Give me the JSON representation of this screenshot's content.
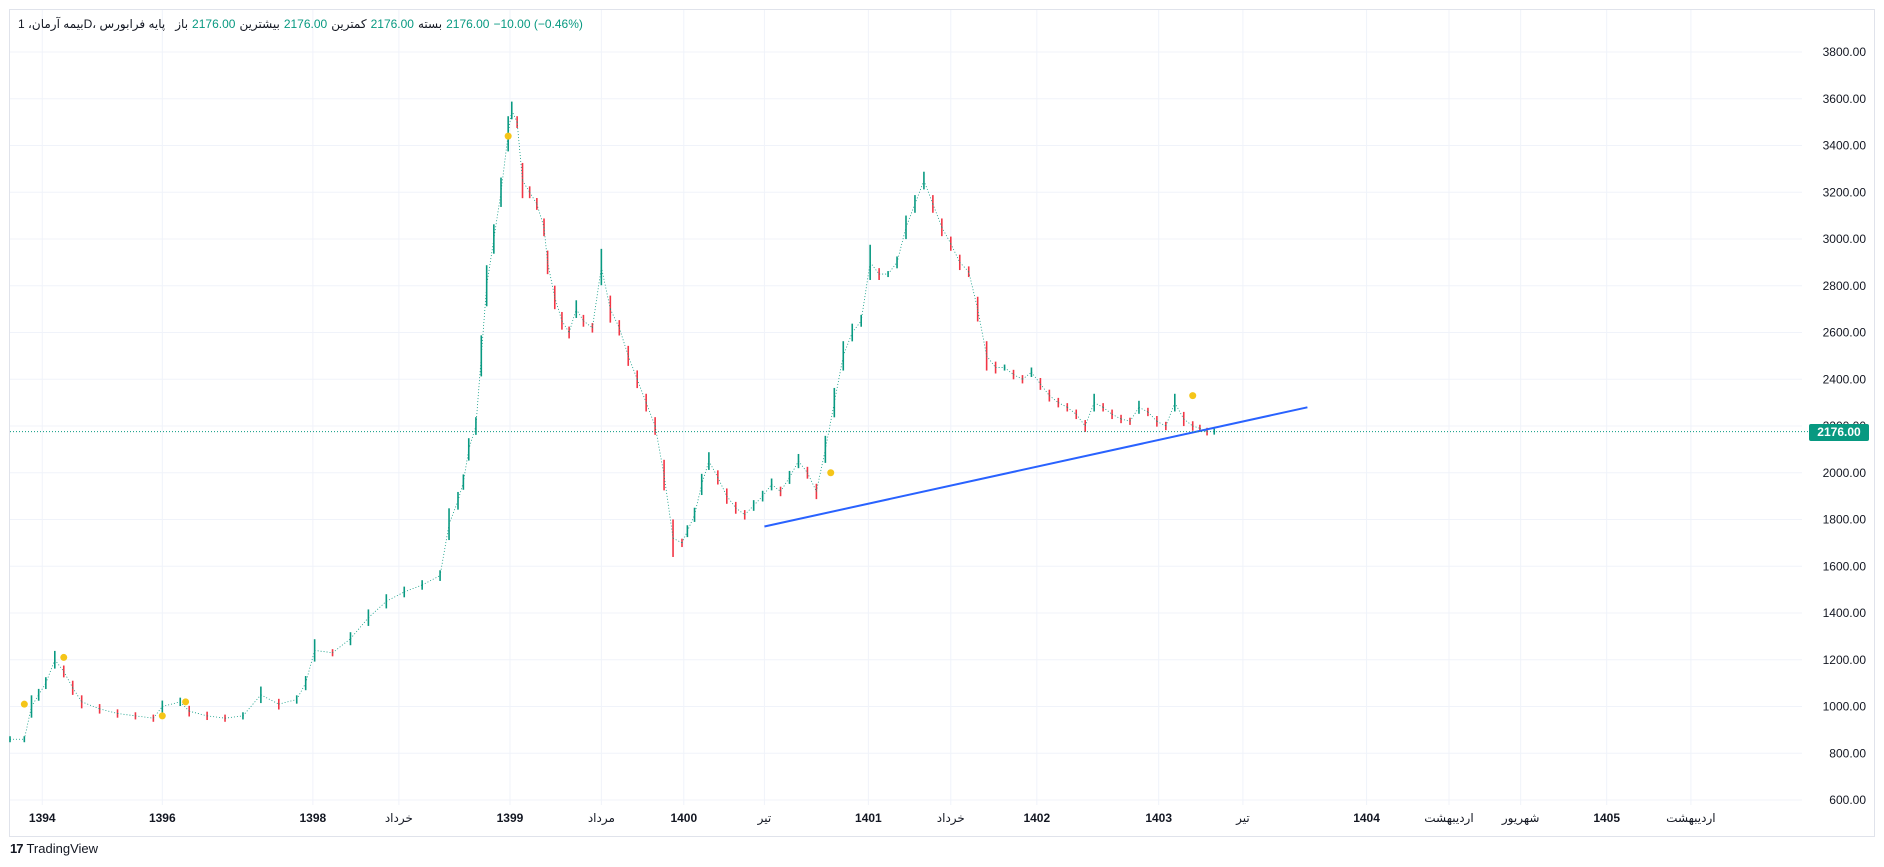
{
  "legend": {
    "symbol": "بیمه آرمان، 1D، پایه فرابورس",
    "open_label": "باز",
    "open_value": "2176.00",
    "high_label": "بیشترین",
    "high_value": "2176.00",
    "low_label": "کمترین",
    "low_value": "2176.00",
    "close_label": "بسته",
    "close_value": "2176.00",
    "change": "−10.00 (−0.46%)"
  },
  "price_badge": "2176.00",
  "brand": {
    "logo": "17",
    "name": "TradingView"
  },
  "colors": {
    "up": "#089981",
    "down": "#f23645",
    "trendline": "#2962ff",
    "marker": "#f5c518",
    "grid": "#f0f3fa"
  },
  "chart_data": {
    "type": "line",
    "ylim": [
      600,
      3800
    ],
    "y_ticks": [
      "3800.00",
      "3600.00",
      "3400.00",
      "3200.00",
      "3000.00",
      "2800.00",
      "2600.00",
      "2400.00",
      "2200.00",
      "2000.00",
      "1800.00",
      "1600.00",
      "1400.00",
      "1200.00",
      "1000.00",
      "800.00",
      "600.00"
    ],
    "x_ticks": [
      {
        "label": "1394",
        "pos": 0.018,
        "bold": true
      },
      {
        "label": "1396",
        "pos": 0.085,
        "bold": true
      },
      {
        "label": "1398",
        "pos": 0.169,
        "bold": true
      },
      {
        "label": "خرداد",
        "pos": 0.217,
        "bold": false
      },
      {
        "label": "1399",
        "pos": 0.279,
        "bold": true
      },
      {
        "label": "مرداد",
        "pos": 0.33,
        "bold": false
      },
      {
        "label": "1400",
        "pos": 0.376,
        "bold": true
      },
      {
        "label": "تیر",
        "pos": 0.421,
        "bold": false
      },
      {
        "label": "1401",
        "pos": 0.479,
        "bold": true
      },
      {
        "label": "خرداد",
        "pos": 0.525,
        "bold": false
      },
      {
        "label": "1402",
        "pos": 0.573,
        "bold": true
      },
      {
        "label": "1403",
        "pos": 0.641,
        "bold": true
      },
      {
        "label": "تیر",
        "pos": 0.688,
        "bold": false
      },
      {
        "label": "1404",
        "pos": 0.757,
        "bold": true
      },
      {
        "label": "اردیبهشت",
        "pos": 0.803,
        "bold": false
      },
      {
        "label": "شهریور",
        "pos": 0.843,
        "bold": false
      },
      {
        "label": "1405",
        "pos": 0.891,
        "bold": true
      },
      {
        "label": "اردیبهشت",
        "pos": 0.938,
        "bold": false
      }
    ],
    "last_price": 2176,
    "series": [
      {
        "x": [
          0.0,
          0.008,
          0.012,
          0.016,
          0.02,
          0.025,
          0.03,
          0.035,
          0.04,
          0.05,
          0.06,
          0.07,
          0.08,
          0.085,
          0.095,
          0.1,
          0.11,
          0.12,
          0.13,
          0.14,
          0.15,
          0.16,
          0.165,
          0.17,
          0.18,
          0.19,
          0.2,
          0.21,
          0.22,
          0.23,
          0.24,
          0.245,
          0.25,
          0.253,
          0.256,
          0.26,
          0.263,
          0.266,
          0.27,
          0.274,
          0.278,
          0.28,
          0.283,
          0.286,
          0.29,
          0.294,
          0.298,
          0.3,
          0.304,
          0.308,
          0.312,
          0.316,
          0.32,
          0.325,
          0.33,
          0.335,
          0.34,
          0.345,
          0.35,
          0.355,
          0.36,
          0.365,
          0.37,
          0.375,
          0.378,
          0.382,
          0.386,
          0.39,
          0.395,
          0.4,
          0.405,
          0.41,
          0.415,
          0.42,
          0.425,
          0.43,
          0.435,
          0.44,
          0.445,
          0.45,
          0.455,
          0.46,
          0.465,
          0.47,
          0.475,
          0.48,
          0.485,
          0.49,
          0.495,
          0.5,
          0.505,
          0.51,
          0.515,
          0.52,
          0.525,
          0.53,
          0.535,
          0.54,
          0.545,
          0.55,
          0.555,
          0.56,
          0.565,
          0.57,
          0.575,
          0.58,
          0.585,
          0.59,
          0.595,
          0.6,
          0.605,
          0.61,
          0.615,
          0.62,
          0.625,
          0.63,
          0.635,
          0.64,
          0.645,
          0.65,
          0.655,
          0.66,
          0.664,
          0.668,
          0.672
        ],
        "y": [
          860,
          860,
          1000,
          1050,
          1100,
          1200,
          1150,
          1080,
          1020,
          990,
          970,
          960,
          950,
          1000,
          1020,
          980,
          960,
          950,
          960,
          1050,
          1010,
          1030,
          1100,
          1240,
          1230,
          1290,
          1380,
          1450,
          1490,
          1520,
          1560,
          1780,
          1880,
          1960,
          2100,
          2200,
          2500,
          2800,
          3000,
          3200,
          3450,
          3550,
          3500,
          3250,
          3200,
          3150,
          3050,
          2900,
          2750,
          2650,
          2600,
          2700,
          2650,
          2620,
          2880,
          2700,
          2620,
          2500,
          2400,
          2300,
          2200,
          1990,
          1720,
          1700,
          1750,
          1820,
          1950,
          2050,
          1980,
          1900,
          1850,
          1820,
          1860,
          1900,
          1950,
          1920,
          1980,
          2050,
          2000,
          1920,
          2100,
          2300,
          2500,
          2600,
          2650,
          2900,
          2850,
          2850,
          2900,
          3050,
          3150,
          3250,
          3150,
          3050,
          2980,
          2900,
          2860,
          2700,
          2500,
          2450,
          2450,
          2420,
          2400,
          2430,
          2380,
          2330,
          2300,
          2280,
          2250,
          2200,
          2300,
          2280,
          2250,
          2230,
          2220,
          2280,
          2260,
          2220,
          2200,
          2300,
          2230,
          2200,
          2190,
          2176,
          2176
        ]
      }
    ],
    "trendline": {
      "x": [
        0.421,
        0.724
      ],
      "y": [
        1770,
        2280
      ]
    },
    "markers": [
      {
        "x": 0.008,
        "y": 1010
      },
      {
        "x": 0.03,
        "y": 1210
      },
      {
        "x": 0.085,
        "y": 960
      },
      {
        "x": 0.098,
        "y": 1020
      },
      {
        "x": 0.278,
        "y": 3440
      },
      {
        "x": 0.458,
        "y": 2000
      },
      {
        "x": 0.66,
        "y": 2330
      }
    ]
  }
}
